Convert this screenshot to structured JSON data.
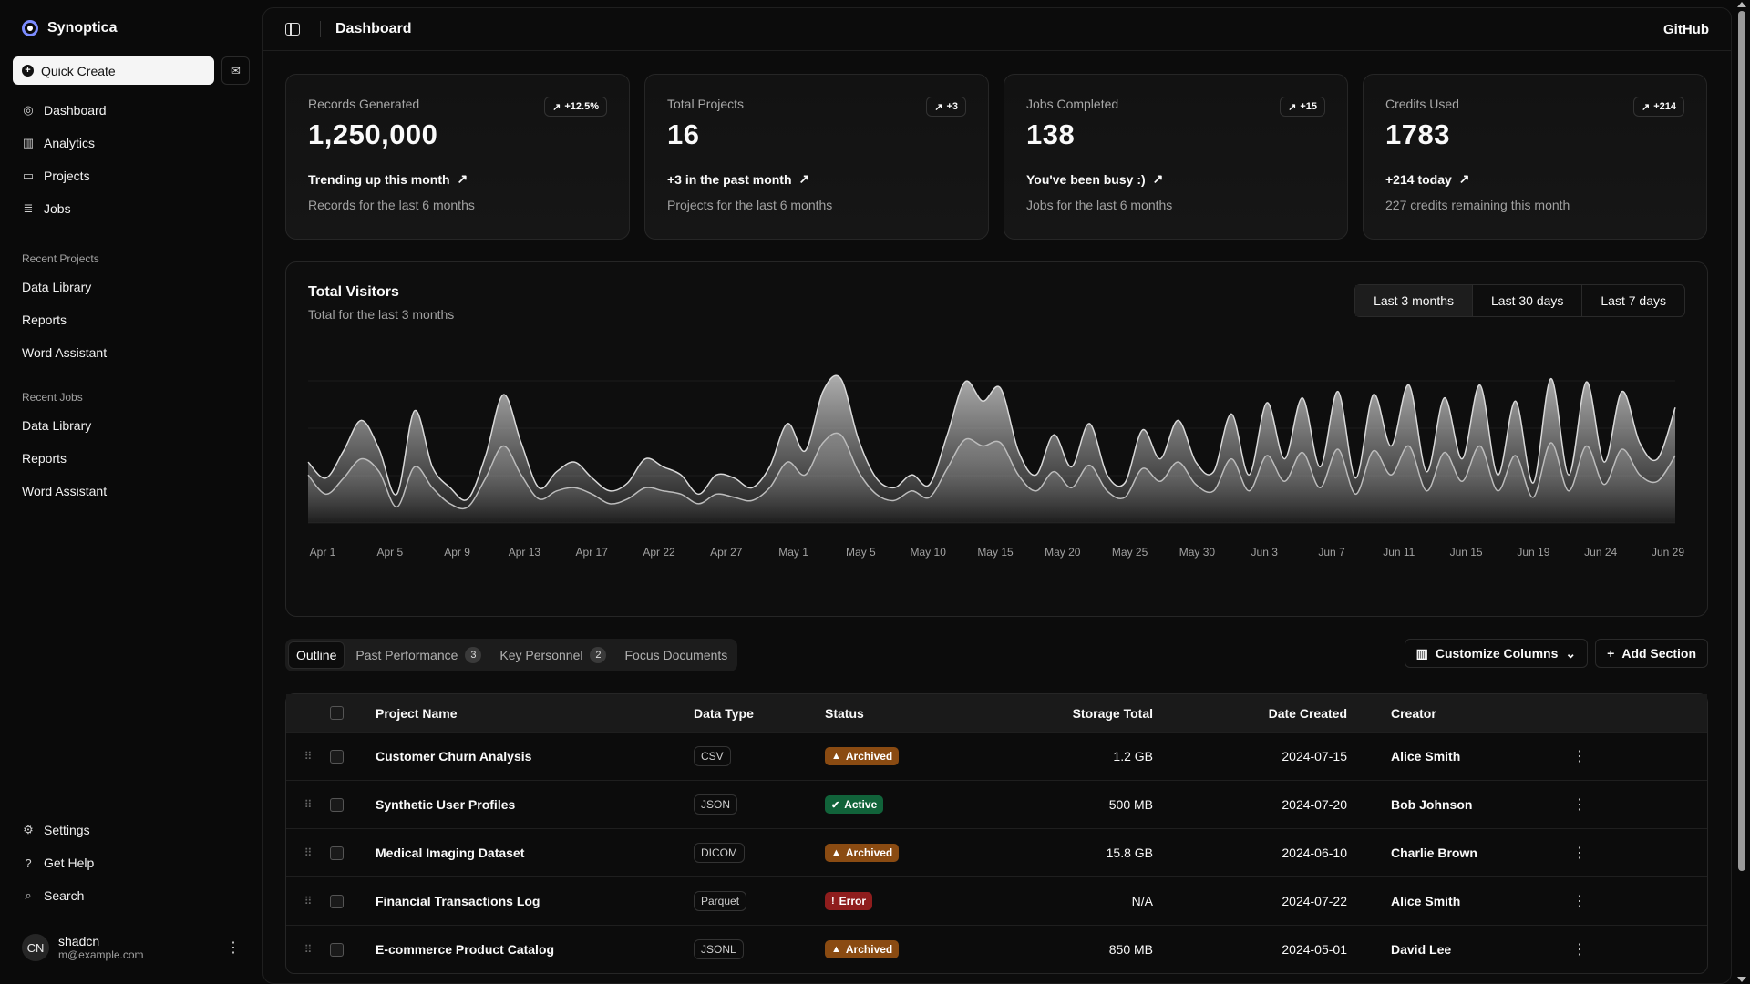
{
  "app": {
    "name": "Synoptica"
  },
  "sidebar": {
    "quick_create": "Quick Create",
    "nav": [
      {
        "label": "Dashboard",
        "icon": "dashboard-icon"
      },
      {
        "label": "Analytics",
        "icon": "analytics-icon"
      },
      {
        "label": "Projects",
        "icon": "folder-icon"
      },
      {
        "label": "Jobs",
        "icon": "database-icon"
      }
    ],
    "recent_projects_title": "Recent Projects",
    "recent_projects": [
      "Data Library",
      "Reports",
      "Word Assistant"
    ],
    "recent_jobs_title": "Recent Jobs",
    "recent_jobs": [
      "Data Library",
      "Reports",
      "Word Assistant"
    ],
    "bottom": [
      {
        "label": "Settings",
        "icon": "settings-icon"
      },
      {
        "label": "Get Help",
        "icon": "help-icon"
      },
      {
        "label": "Search",
        "icon": "search-icon"
      }
    ],
    "user": {
      "initials": "CN",
      "name": "shadcn",
      "email": "m@example.com"
    }
  },
  "header": {
    "title": "Dashboard",
    "github": "GitHub"
  },
  "cards": [
    {
      "label": "Records Generated",
      "value": "1,250,000",
      "badge": "+12.5%",
      "trend": "Trending up this month",
      "sub": "Records for the last 6 months"
    },
    {
      "label": "Total Projects",
      "value": "16",
      "badge": "+3",
      "trend": "+3 in the past month",
      "sub": "Projects for the last 6 months"
    },
    {
      "label": "Jobs Completed",
      "value": "138",
      "badge": "+15",
      "trend": "You've been busy :)",
      "sub": "Jobs for the last 6 months"
    },
    {
      "label": "Credits Used",
      "value": "1783",
      "badge": "+214",
      "trend": "+214 today",
      "sub": "227 credits remaining this month"
    }
  ],
  "visitors": {
    "title": "Total Visitors",
    "subtitle": "Total for the last 3 months",
    "ranges": [
      "Last 3 months",
      "Last 30 days",
      "Last 7 days"
    ],
    "selected_range": "Last 3 months"
  },
  "chart_data": {
    "type": "area",
    "title": "Total Visitors",
    "x_tick_labels": [
      "Apr 1",
      "Apr 5",
      "Apr 9",
      "Apr 13",
      "Apr 17",
      "Apr 22",
      "Apr 27",
      "May 1",
      "May 5",
      "May 10",
      "May 15",
      "May 20",
      "May 25",
      "May 30",
      "Jun 3",
      "Jun 7",
      "Jun 11",
      "Jun 15",
      "Jun 19",
      "Jun 24",
      "Jun 29"
    ],
    "series": [
      {
        "name": "",
        "color": "#c8c8c8",
        "values": [
          0.38,
          0.28,
          0.45,
          0.64,
          0.46,
          0.18,
          0.7,
          0.35,
          0.22,
          0.15,
          0.42,
          0.8,
          0.5,
          0.22,
          0.32,
          0.38,
          0.28,
          0.2,
          0.25,
          0.4,
          0.35,
          0.3,
          0.18,
          0.3,
          0.28,
          0.22,
          0.35,
          0.62,
          0.45,
          0.82,
          0.9,
          0.52,
          0.28,
          0.22,
          0.3,
          0.24,
          0.55,
          0.88,
          0.76,
          0.84,
          0.45,
          0.3,
          0.55,
          0.35,
          0.62,
          0.3,
          0.25,
          0.58,
          0.4,
          0.64,
          0.38,
          0.32,
          0.68,
          0.3,
          0.75,
          0.4,
          0.78,
          0.35,
          0.82,
          0.28,
          0.8,
          0.48,
          0.86,
          0.32,
          0.78,
          0.4,
          0.86,
          0.3,
          0.76,
          0.25,
          0.9,
          0.3,
          0.88,
          0.38,
          0.82,
          0.5,
          0.4,
          0.72
        ]
      },
      {
        "name": "",
        "color": "#8a8a8a",
        "values": [
          0.3,
          0.18,
          0.28,
          0.4,
          0.32,
          0.1,
          0.35,
          0.22,
          0.12,
          0.1,
          0.28,
          0.48,
          0.3,
          0.15,
          0.2,
          0.22,
          0.18,
          0.12,
          0.15,
          0.22,
          0.2,
          0.18,
          0.12,
          0.18,
          0.16,
          0.14,
          0.22,
          0.38,
          0.3,
          0.5,
          0.55,
          0.32,
          0.18,
          0.14,
          0.2,
          0.16,
          0.34,
          0.52,
          0.48,
          0.5,
          0.3,
          0.2,
          0.32,
          0.22,
          0.36,
          0.2,
          0.16,
          0.34,
          0.26,
          0.38,
          0.24,
          0.2,
          0.4,
          0.2,
          0.42,
          0.26,
          0.44,
          0.22,
          0.46,
          0.18,
          0.45,
          0.3,
          0.48,
          0.2,
          0.44,
          0.26,
          0.48,
          0.2,
          0.42,
          0.16,
          0.5,
          0.2,
          0.48,
          0.24,
          0.46,
          0.3,
          0.26,
          0.42
        ]
      }
    ],
    "grid": true
  },
  "tabs": [
    {
      "label": "Outline",
      "count": ""
    },
    {
      "label": "Past Performance",
      "count": "3"
    },
    {
      "label": "Key Personnel",
      "count": "2"
    },
    {
      "label": "Focus Documents",
      "count": ""
    }
  ],
  "actions": {
    "customize": "Customize Columns",
    "add_section": "Add Section"
  },
  "table": {
    "headers": {
      "name": "Project Name",
      "type": "Data Type",
      "status": "Status",
      "storage": "Storage Total",
      "date": "Date Created",
      "creator": "Creator"
    },
    "rows": [
      {
        "name": "Customer Churn Analysis",
        "type": "CSV",
        "status": "Archived",
        "storage": "1.2 GB",
        "date": "2024-07-15",
        "creator": "Alice Smith"
      },
      {
        "name": "Synthetic User Profiles",
        "type": "JSON",
        "status": "Active",
        "storage": "500 MB",
        "date": "2024-07-20",
        "creator": "Bob Johnson"
      },
      {
        "name": "Medical Imaging Dataset",
        "type": "DICOM",
        "status": "Archived",
        "storage": "15.8 GB",
        "date": "2024-06-10",
        "creator": "Charlie Brown"
      },
      {
        "name": "Financial Transactions Log",
        "type": "Parquet",
        "status": "Error",
        "storage": "N/A",
        "date": "2024-07-22",
        "creator": "Alice Smith"
      },
      {
        "name": "E-commerce Product Catalog",
        "type": "JSONL",
        "status": "Archived",
        "storage": "850 MB",
        "date": "2024-05-01",
        "creator": "David Lee"
      }
    ]
  }
}
